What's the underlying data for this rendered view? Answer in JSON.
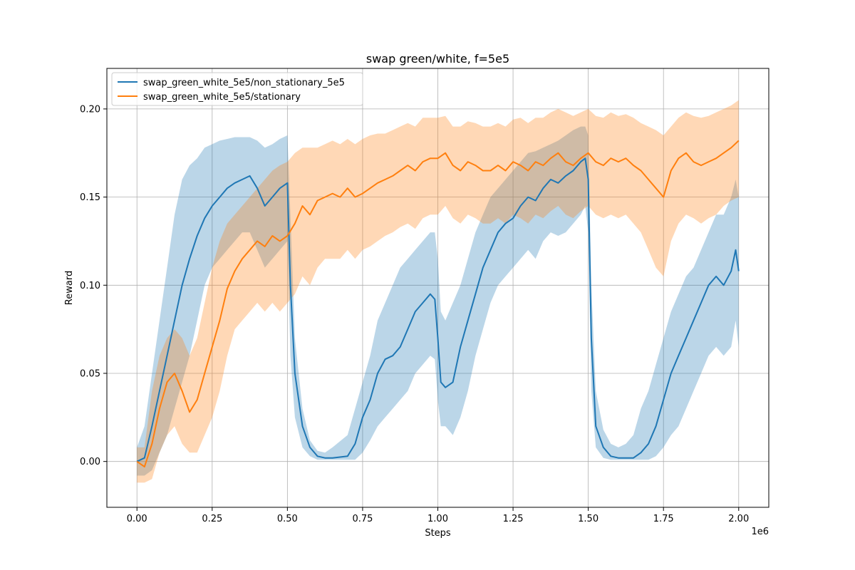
{
  "chart_data": {
    "type": "line",
    "title": "swap green/white, f=5e5",
    "xlabel": "Steps",
    "ylabel": "Reward",
    "x_offset_label": "1e6",
    "xlim": [
      -0.1,
      2.1
    ],
    "ylim": [
      -0.026,
      0.223
    ],
    "x_ticks": [
      0.0,
      0.25,
      0.5,
      0.75,
      1.0,
      1.25,
      1.5,
      1.75,
      2.0
    ],
    "x_tick_labels": [
      "0.00",
      "0.25",
      "0.50",
      "0.75",
      "1.00",
      "1.25",
      "1.50",
      "1.75",
      "2.00"
    ],
    "y_ticks": [
      0.0,
      0.05,
      0.1,
      0.15,
      0.2
    ],
    "y_tick_labels": [
      "0.00",
      "0.05",
      "0.10",
      "0.15",
      "0.20"
    ],
    "grid": true,
    "legend_position": "top-left",
    "series": [
      {
        "name": "swap_green_white_5e5/non_stationary_5e5",
        "color": "#1f77b4",
        "band_color": "#1f77b4",
        "x": [
          0.0,
          0.025,
          0.05,
          0.075,
          0.1,
          0.125,
          0.15,
          0.175,
          0.2,
          0.225,
          0.25,
          0.275,
          0.3,
          0.325,
          0.35,
          0.375,
          0.4,
          0.425,
          0.45,
          0.475,
          0.5,
          0.51,
          0.525,
          0.55,
          0.575,
          0.6,
          0.625,
          0.65,
          0.7,
          0.725,
          0.75,
          0.775,
          0.8,
          0.825,
          0.85,
          0.875,
          0.9,
          0.925,
          0.95,
          0.975,
          0.99,
          1.0,
          1.01,
          1.025,
          1.05,
          1.075,
          1.1,
          1.125,
          1.15,
          1.175,
          1.2,
          1.225,
          1.25,
          1.275,
          1.3,
          1.325,
          1.35,
          1.375,
          1.4,
          1.425,
          1.45,
          1.475,
          1.49,
          1.5,
          1.51,
          1.525,
          1.55,
          1.575,
          1.6,
          1.625,
          1.65,
          1.675,
          1.7,
          1.725,
          1.75,
          1.775,
          1.8,
          1.825,
          1.85,
          1.875,
          1.9,
          1.925,
          1.95,
          1.975,
          1.99,
          2.0
        ],
        "values": [
          0.0,
          0.002,
          0.02,
          0.04,
          0.06,
          0.08,
          0.1,
          0.115,
          0.128,
          0.138,
          0.145,
          0.15,
          0.155,
          0.158,
          0.16,
          0.162,
          0.155,
          0.145,
          0.15,
          0.155,
          0.158,
          0.1,
          0.05,
          0.02,
          0.008,
          0.003,
          0.002,
          0.002,
          0.003,
          0.01,
          0.025,
          0.035,
          0.05,
          0.058,
          0.06,
          0.065,
          0.075,
          0.085,
          0.09,
          0.095,
          0.092,
          0.07,
          0.045,
          0.042,
          0.045,
          0.065,
          0.08,
          0.095,
          0.11,
          0.12,
          0.13,
          0.135,
          0.138,
          0.145,
          0.15,
          0.148,
          0.155,
          0.16,
          0.158,
          0.162,
          0.165,
          0.17,
          0.172,
          0.16,
          0.07,
          0.02,
          0.008,
          0.003,
          0.002,
          0.002,
          0.002,
          0.005,
          0.01,
          0.02,
          0.035,
          0.05,
          0.06,
          0.07,
          0.08,
          0.09,
          0.1,
          0.105,
          0.1,
          0.108,
          0.12,
          0.108
        ],
        "upper": [
          0.008,
          0.02,
          0.05,
          0.08,
          0.11,
          0.14,
          0.16,
          0.168,
          0.172,
          0.178,
          0.18,
          0.182,
          0.183,
          0.184,
          0.184,
          0.184,
          0.182,
          0.178,
          0.18,
          0.183,
          0.185,
          0.14,
          0.07,
          0.03,
          0.012,
          0.006,
          0.005,
          0.008,
          0.015,
          0.03,
          0.045,
          0.06,
          0.08,
          0.09,
          0.1,
          0.11,
          0.115,
          0.12,
          0.125,
          0.13,
          0.13,
          0.115,
          0.085,
          0.08,
          0.09,
          0.1,
          0.115,
          0.13,
          0.14,
          0.15,
          0.155,
          0.16,
          0.165,
          0.17,
          0.175,
          0.176,
          0.178,
          0.18,
          0.182,
          0.185,
          0.188,
          0.19,
          0.19,
          0.185,
          0.1,
          0.04,
          0.018,
          0.01,
          0.008,
          0.01,
          0.015,
          0.03,
          0.04,
          0.055,
          0.07,
          0.085,
          0.095,
          0.105,
          0.11,
          0.12,
          0.13,
          0.14,
          0.14,
          0.15,
          0.16,
          0.15
        ],
        "lower": [
          -0.008,
          -0.008,
          -0.005,
          0.005,
          0.015,
          0.03,
          0.045,
          0.06,
          0.08,
          0.1,
          0.11,
          0.115,
          0.12,
          0.125,
          0.13,
          0.13,
          0.12,
          0.11,
          0.115,
          0.12,
          0.125,
          0.06,
          0.025,
          0.008,
          0.003,
          0.001,
          0.001,
          0.001,
          0.001,
          0.001,
          0.005,
          0.012,
          0.02,
          0.025,
          0.03,
          0.035,
          0.04,
          0.05,
          0.055,
          0.06,
          0.058,
          0.035,
          0.02,
          0.02,
          0.015,
          0.025,
          0.04,
          0.06,
          0.075,
          0.09,
          0.1,
          0.105,
          0.11,
          0.115,
          0.12,
          0.115,
          0.125,
          0.13,
          0.128,
          0.13,
          0.135,
          0.14,
          0.145,
          0.13,
          0.04,
          0.008,
          0.002,
          0.001,
          0.001,
          0.001,
          0.001,
          0.001,
          0.001,
          0.003,
          0.008,
          0.015,
          0.02,
          0.03,
          0.04,
          0.05,
          0.06,
          0.065,
          0.06,
          0.065,
          0.08,
          0.065
        ]
      },
      {
        "name": "swap_green_white_5e5/stationary",
        "color": "#ff7f0e",
        "band_color": "#ff7f0e",
        "x": [
          0.0,
          0.025,
          0.05,
          0.075,
          0.1,
          0.125,
          0.15,
          0.175,
          0.2,
          0.225,
          0.25,
          0.275,
          0.3,
          0.325,
          0.35,
          0.375,
          0.4,
          0.425,
          0.45,
          0.475,
          0.5,
          0.525,
          0.55,
          0.575,
          0.6,
          0.625,
          0.65,
          0.675,
          0.7,
          0.725,
          0.75,
          0.775,
          0.8,
          0.825,
          0.85,
          0.875,
          0.9,
          0.925,
          0.95,
          0.975,
          1.0,
          1.025,
          1.05,
          1.075,
          1.1,
          1.125,
          1.15,
          1.175,
          1.2,
          1.225,
          1.25,
          1.275,
          1.3,
          1.325,
          1.35,
          1.375,
          1.4,
          1.425,
          1.45,
          1.475,
          1.5,
          1.525,
          1.55,
          1.575,
          1.6,
          1.625,
          1.65,
          1.675,
          1.7,
          1.725,
          1.75,
          1.775,
          1.8,
          1.825,
          1.85,
          1.875,
          1.9,
          1.925,
          1.95,
          1.975,
          2.0
        ],
        "values": [
          0.0,
          -0.003,
          0.01,
          0.03,
          0.045,
          0.05,
          0.04,
          0.028,
          0.035,
          0.05,
          0.065,
          0.08,
          0.098,
          0.108,
          0.115,
          0.12,
          0.125,
          0.122,
          0.128,
          0.125,
          0.128,
          0.135,
          0.145,
          0.14,
          0.148,
          0.15,
          0.152,
          0.15,
          0.155,
          0.15,
          0.152,
          0.155,
          0.158,
          0.16,
          0.162,
          0.165,
          0.168,
          0.165,
          0.17,
          0.172,
          0.172,
          0.175,
          0.168,
          0.165,
          0.17,
          0.168,
          0.165,
          0.165,
          0.168,
          0.165,
          0.17,
          0.168,
          0.165,
          0.17,
          0.168,
          0.172,
          0.175,
          0.17,
          0.168,
          0.172,
          0.175,
          0.17,
          0.168,
          0.172,
          0.17,
          0.172,
          0.168,
          0.165,
          0.16,
          0.155,
          0.15,
          0.165,
          0.172,
          0.175,
          0.17,
          0.168,
          0.17,
          0.172,
          0.175,
          0.178,
          0.182
        ],
        "upper": [
          0.008,
          0.008,
          0.04,
          0.06,
          0.07,
          0.075,
          0.07,
          0.06,
          0.07,
          0.09,
          0.11,
          0.125,
          0.135,
          0.14,
          0.145,
          0.15,
          0.155,
          0.16,
          0.165,
          0.168,
          0.17,
          0.175,
          0.178,
          0.178,
          0.178,
          0.18,
          0.182,
          0.18,
          0.183,
          0.18,
          0.183,
          0.185,
          0.186,
          0.186,
          0.188,
          0.19,
          0.192,
          0.19,
          0.195,
          0.195,
          0.195,
          0.196,
          0.19,
          0.19,
          0.193,
          0.192,
          0.19,
          0.19,
          0.192,
          0.19,
          0.194,
          0.195,
          0.192,
          0.195,
          0.195,
          0.198,
          0.2,
          0.198,
          0.196,
          0.198,
          0.2,
          0.196,
          0.195,
          0.198,
          0.196,
          0.197,
          0.195,
          0.192,
          0.19,
          0.188,
          0.185,
          0.19,
          0.195,
          0.198,
          0.196,
          0.195,
          0.196,
          0.198,
          0.2,
          0.202,
          0.205
        ],
        "lower": [
          -0.012,
          -0.012,
          -0.01,
          0.005,
          0.015,
          0.02,
          0.01,
          0.005,
          0.005,
          0.015,
          0.025,
          0.04,
          0.06,
          0.075,
          0.08,
          0.085,
          0.09,
          0.085,
          0.09,
          0.085,
          0.09,
          0.095,
          0.105,
          0.1,
          0.11,
          0.115,
          0.115,
          0.115,
          0.12,
          0.115,
          0.12,
          0.122,
          0.125,
          0.128,
          0.13,
          0.133,
          0.135,
          0.132,
          0.138,
          0.14,
          0.14,
          0.145,
          0.138,
          0.135,
          0.14,
          0.138,
          0.135,
          0.135,
          0.138,
          0.135,
          0.14,
          0.138,
          0.135,
          0.14,
          0.138,
          0.142,
          0.145,
          0.14,
          0.138,
          0.142,
          0.145,
          0.14,
          0.138,
          0.14,
          0.138,
          0.14,
          0.135,
          0.13,
          0.12,
          0.11,
          0.105,
          0.125,
          0.135,
          0.14,
          0.138,
          0.135,
          0.138,
          0.14,
          0.145,
          0.148,
          0.15
        ]
      }
    ]
  }
}
